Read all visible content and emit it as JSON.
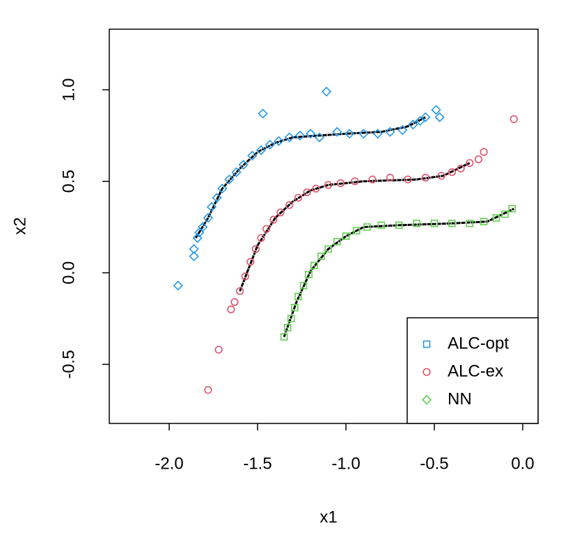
{
  "chart_data": {
    "type": "scatter",
    "xlabel": "x1",
    "ylabel": "x2",
    "xlim": [
      -2.339,
      0.087
    ],
    "ylim": [
      -0.823,
      1.331
    ],
    "xticks": [
      {
        "value": -2,
        "label": "-2.0"
      },
      {
        "value": -1.5,
        "label": "-1.5"
      },
      {
        "value": -1,
        "label": "-1.0"
      },
      {
        "value": -0.5,
        "label": "-0.5"
      },
      {
        "value": 0,
        "label": "0.0"
      }
    ],
    "yticks": [
      {
        "value": -0.5,
        "label": "-0.5"
      },
      {
        "value": 0,
        "label": "0.0"
      },
      {
        "value": 0.5,
        "label": "0.5"
      },
      {
        "value": 1,
        "label": "1.0"
      }
    ],
    "grid": false,
    "legend": {
      "location": "bottomright",
      "markers": [
        "square",
        "circle",
        "diamond"
      ]
    },
    "series": [
      {
        "name": "ALC-opt",
        "color": "#2297E6",
        "marker": "diamond",
        "x": [
          -1.95,
          -1.86,
          -1.86,
          -1.84,
          -1.83,
          -1.81,
          -1.78,
          -1.76,
          -1.73,
          -1.7,
          -1.66,
          -1.62,
          -1.58,
          -1.53,
          -1.48,
          -1.47,
          -1.43,
          -1.38,
          -1.32,
          -1.26,
          -1.2,
          -1.15,
          -1.11,
          -1.05,
          -0.98,
          -0.9,
          -0.82,
          -0.75,
          -0.68,
          -0.62,
          -0.58,
          -0.55,
          -0.49,
          -0.47
        ],
        "values": [
          -0.07,
          0.09,
          0.13,
          0.19,
          0.22,
          0.25,
          0.3,
          0.36,
          0.41,
          0.46,
          0.51,
          0.55,
          0.59,
          0.64,
          0.67,
          0.87,
          0.7,
          0.72,
          0.74,
          0.75,
          0.76,
          0.74,
          0.99,
          0.77,
          0.76,
          0.76,
          0.76,
          0.77,
          0.78,
          0.81,
          0.83,
          0.85,
          0.89,
          0.85
        ]
      },
      {
        "name": "ALC-ex",
        "color": "#DF536B",
        "marker": "circle",
        "x": [
          -1.78,
          -1.72,
          -1.65,
          -1.63,
          -1.6,
          -1.57,
          -1.54,
          -1.51,
          -1.48,
          -1.45,
          -1.41,
          -1.37,
          -1.32,
          -1.27,
          -1.22,
          -1.17,
          -1.1,
          -1.03,
          -0.95,
          -0.85,
          -0.75,
          -0.65,
          -0.55,
          -0.46,
          -0.4,
          -0.35,
          -0.3,
          -0.25,
          -0.22,
          -0.05
        ],
        "values": [
          -0.64,
          -0.42,
          -0.2,
          -0.16,
          -0.1,
          -0.02,
          0.06,
          0.13,
          0.19,
          0.24,
          0.29,
          0.33,
          0.37,
          0.41,
          0.44,
          0.46,
          0.48,
          0.49,
          0.5,
          0.51,
          0.52,
          0.51,
          0.52,
          0.53,
          0.55,
          0.57,
          0.6,
          0.62,
          0.66,
          0.84
        ]
      },
      {
        "name": "NN",
        "color": "#61D04F",
        "marker": "square",
        "x": [
          -1.35,
          -1.33,
          -1.31,
          -1.29,
          -1.27,
          -1.24,
          -1.21,
          -1.18,
          -1.14,
          -1.1,
          -1.05,
          -1.0,
          -0.94,
          -0.88,
          -0.8,
          -0.7,
          -0.6,
          -0.5,
          -0.4,
          -0.3,
          -0.22,
          -0.15,
          -0.1,
          -0.06
        ],
        "values": [
          -0.35,
          -0.3,
          -0.25,
          -0.19,
          -0.13,
          -0.07,
          -0.01,
          0.04,
          0.09,
          0.13,
          0.17,
          0.2,
          0.23,
          0.25,
          0.26,
          0.26,
          0.27,
          0.27,
          0.27,
          0.27,
          0.28,
          0.3,
          0.32,
          0.35
        ]
      }
    ],
    "curves": {
      "color": "#000000",
      "lines": [
        {
          "x": [
            -1.85,
            -1.78,
            -1.7,
            -1.6,
            -1.5,
            -1.4,
            -1.3,
            -1.15,
            -1.0,
            -0.8,
            -0.65,
            -0.55
          ],
          "values": [
            0.19,
            0.3,
            0.46,
            0.57,
            0.66,
            0.71,
            0.74,
            0.75,
            0.76,
            0.77,
            0.8,
            0.85
          ]
        },
        {
          "x": [
            -1.6,
            -1.5,
            -1.4,
            -1.3,
            -1.2,
            -1.1,
            -0.9,
            -0.6,
            -0.45,
            -0.3
          ],
          "values": [
            -0.1,
            0.15,
            0.3,
            0.39,
            0.45,
            0.48,
            0.5,
            0.51,
            0.53,
            0.6
          ]
        },
        {
          "x": [
            -1.35,
            -1.28,
            -1.2,
            -1.1,
            -1.0,
            -0.9,
            -0.7,
            -0.4,
            -0.2,
            -0.05
          ],
          "values": [
            -0.35,
            -0.16,
            0.01,
            0.13,
            0.2,
            0.25,
            0.26,
            0.27,
            0.28,
            0.35
          ]
        }
      ]
    }
  }
}
